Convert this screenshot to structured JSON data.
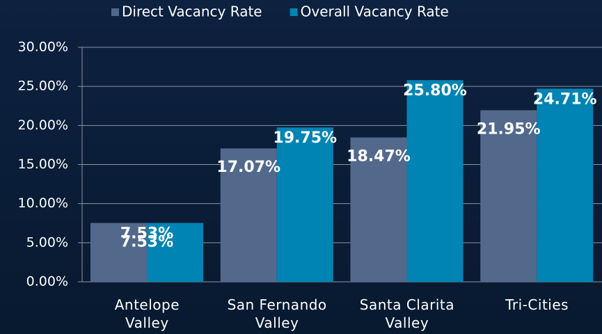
{
  "chart_data": {
    "type": "bar",
    "categories": [
      "Antelope Valley",
      "San Fernando Valley",
      "Santa Clarita Valley",
      "Tri-Cities"
    ],
    "series": [
      {
        "name": "Direct Vacancy Rate",
        "color": "#52698c",
        "values": [
          7.53,
          17.07,
          18.47,
          21.95
        ],
        "value_labels": [
          "7.53%",
          "17.07%",
          "18.47%",
          "21.95%"
        ]
      },
      {
        "name": "Overall Vacancy Rate",
        "color": "#0084b4",
        "values": [
          7.53,
          19.75,
          25.8,
          24.71
        ],
        "value_labels": [
          "7.53%",
          "19.75%",
          "25.80%",
          "24.71%"
        ]
      }
    ],
    "ylim": [
      0,
      30
    ],
    "yticks": [
      {
        "value": 0,
        "label": "0.00%"
      },
      {
        "value": 5,
        "label": "5.00%"
      },
      {
        "value": 10,
        "label": "10.00%"
      },
      {
        "value": 15,
        "label": "15.00%"
      },
      {
        "value": 20,
        "label": "20.00%"
      },
      {
        "value": 25,
        "label": "25.00%"
      },
      {
        "value": 30,
        "label": "30.00%"
      }
    ],
    "grid": true,
    "legend": "top"
  }
}
